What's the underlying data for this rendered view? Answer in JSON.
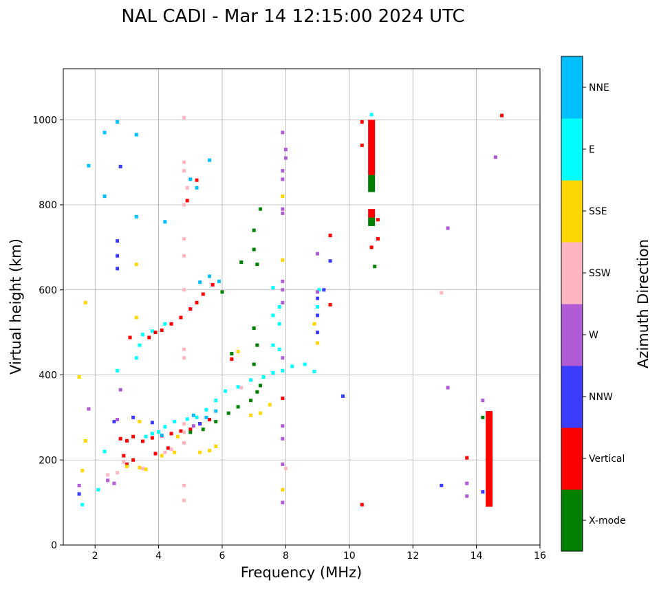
{
  "chart_data": {
    "type": "scatter",
    "title": "NAL CADI - Mar 14 12:15:00 2024 UTC",
    "xlabel": "Frequency (MHz)",
    "ylabel": "Virtual height (km)",
    "xlim": [
      1,
      16
    ],
    "ylim": [
      0,
      1120
    ],
    "xticks": [
      2,
      4,
      6,
      8,
      10,
      12,
      14,
      16
    ],
    "yticks": [
      0,
      200,
      400,
      600,
      800,
      1000
    ],
    "grid": true,
    "colorbar": {
      "label": "Azimuth Direction",
      "categories": [
        {
          "name": "X-mode",
          "color": "#008000"
        },
        {
          "name": "Vertical",
          "color": "#ff0000"
        },
        {
          "name": "NNW",
          "color": "#3c3cff"
        },
        {
          "name": "W",
          "color": "#b05ad6"
        },
        {
          "name": "SSW",
          "color": "#ffb6c1"
        },
        {
          "name": "SSE",
          "color": "#ffd700"
        },
        {
          "name": "E",
          "color": "#00ffff"
        },
        {
          "name": "NNE",
          "color": "#00bfff"
        }
      ]
    },
    "traces": [
      {
        "name": "E",
        "points": [
          [
            3.6,
            255
          ],
          [
            3.8,
            262
          ],
          [
            4.0,
            266
          ],
          [
            4.2,
            278
          ],
          [
            4.5,
            290
          ],
          [
            4.9,
            296
          ],
          [
            5.2,
            300
          ],
          [
            5.5,
            318
          ],
          [
            5.8,
            340
          ],
          [
            6.1,
            362
          ],
          [
            6.5,
            372
          ],
          [
            6.9,
            388
          ],
          [
            7.3,
            395
          ],
          [
            7.6,
            405
          ],
          [
            7.9,
            410
          ],
          [
            8.2,
            420
          ],
          [
            8.6,
            425
          ],
          [
            8.9,
            408
          ],
          [
            9.0,
            560
          ],
          [
            9.05,
            600
          ],
          [
            3.5,
            495
          ],
          [
            3.8,
            503
          ],
          [
            4.2,
            520
          ],
          [
            7.6,
            540
          ],
          [
            7.8,
            520
          ],
          [
            7.6,
            470
          ],
          [
            7.8,
            460
          ],
          [
            7.6,
            605
          ],
          [
            7.8,
            560
          ],
          [
            3.3,
            440
          ],
          [
            3.4,
            470
          ],
          [
            1.6,
            95
          ],
          [
            2.1,
            130
          ],
          [
            2.3,
            220
          ],
          [
            2.7,
            410
          ],
          [
            10.7,
            1012
          ]
        ]
      },
      {
        "name": "Vertical",
        "points": [
          [
            2.8,
            250
          ],
          [
            3.0,
            245
          ],
          [
            3.2,
            255
          ],
          [
            3.5,
            244
          ],
          [
            3.8,
            252
          ],
          [
            4.1,
            257
          ],
          [
            4.4,
            262
          ],
          [
            4.7,
            268
          ],
          [
            5.0,
            272
          ],
          [
            5.3,
            285
          ],
          [
            5.6,
            295
          ],
          [
            3.7,
            488
          ],
          [
            3.9,
            500
          ],
          [
            4.1,
            505
          ],
          [
            4.4,
            520
          ],
          [
            4.7,
            535
          ],
          [
            5.0,
            555
          ],
          [
            5.2,
            570
          ],
          [
            5.4,
            590
          ],
          [
            5.7,
            612
          ],
          [
            2.9,
            210
          ],
          [
            3.0,
            190
          ],
          [
            3.2,
            200
          ],
          [
            3.9,
            215
          ],
          [
            4.3,
            228
          ],
          [
            4.8,
            240
          ],
          [
            6.3,
            437
          ],
          [
            7.9,
            345
          ],
          [
            10.4,
            95
          ],
          [
            10.4,
            995
          ],
          [
            10.4,
            940
          ],
          [
            10.7,
            985
          ],
          [
            10.7,
            920
          ],
          [
            10.7,
            870
          ],
          [
            10.7,
            780
          ],
          [
            10.7,
            700
          ],
          [
            10.9,
            720
          ],
          [
            10.9,
            765
          ],
          [
            14.8,
            1010
          ],
          [
            13.7,
            205
          ],
          [
            9.4,
            728
          ],
          [
            9.4,
            565
          ],
          [
            3.1,
            488
          ],
          [
            4.9,
            810
          ],
          [
            5.2,
            858
          ]
        ]
      },
      {
        "name": "X-mode",
        "points": [
          [
            5.0,
            265
          ],
          [
            5.4,
            272
          ],
          [
            5.8,
            290
          ],
          [
            6.2,
            310
          ],
          [
            6.5,
            325
          ],
          [
            6.9,
            340
          ],
          [
            7.1,
            360
          ],
          [
            7.2,
            375
          ],
          [
            7.0,
            425
          ],
          [
            7.1,
            470
          ],
          [
            7.0,
            510
          ],
          [
            6.6,
            665
          ],
          [
            7.0,
            695
          ],
          [
            7.1,
            660
          ],
          [
            6.0,
            595
          ],
          [
            7.0,
            740
          ],
          [
            7.2,
            790
          ],
          [
            6.3,
            450
          ],
          [
            10.7,
            845
          ],
          [
            10.7,
            760
          ],
          [
            10.8,
            655
          ],
          [
            14.2,
            300
          ],
          [
            14.4,
            255
          ],
          [
            14.4,
            200
          ],
          [
            14.4,
            150
          ]
        ]
      },
      {
        "name": "SSE",
        "points": [
          [
            3.0,
            185
          ],
          [
            3.4,
            182
          ],
          [
            3.6,
            178
          ],
          [
            4.1,
            210
          ],
          [
            4.5,
            218
          ],
          [
            5.3,
            218
          ],
          [
            5.6,
            222
          ],
          [
            5.8,
            232
          ],
          [
            6.9,
            305
          ],
          [
            7.2,
            310
          ],
          [
            7.5,
            330
          ],
          [
            3.4,
            290
          ],
          [
            4.6,
            255
          ],
          [
            1.5,
            395
          ],
          [
            1.7,
            245
          ],
          [
            8.9,
            520
          ],
          [
            9.0,
            475
          ],
          [
            7.9,
            130
          ],
          [
            7.9,
            820
          ],
          [
            7.9,
            670
          ],
          [
            6.5,
            455
          ],
          [
            1.6,
            175
          ],
          [
            1.7,
            570
          ],
          [
            3.3,
            660
          ],
          [
            3.3,
            535
          ]
        ]
      },
      {
        "name": "SSW",
        "points": [
          [
            2.4,
            165
          ],
          [
            2.7,
            170
          ],
          [
            2.9,
            195
          ],
          [
            3.5,
            180
          ],
          [
            4.2,
            218
          ],
          [
            4.4,
            225
          ],
          [
            4.8,
            1005
          ],
          [
            4.8,
            900
          ],
          [
            4.8,
            880
          ],
          [
            4.8,
            800
          ],
          [
            4.8,
            720
          ],
          [
            4.8,
            680
          ],
          [
            4.8,
            600
          ],
          [
            4.8,
            460
          ],
          [
            4.8,
            440
          ],
          [
            4.8,
            285
          ],
          [
            4.8,
            265
          ],
          [
            4.8,
            240
          ],
          [
            4.8,
            140
          ],
          [
            4.8,
            105
          ],
          [
            12.9,
            593
          ],
          [
            8.0,
            180
          ],
          [
            6.6,
            370
          ],
          [
            4.9,
            840
          ]
        ]
      },
      {
        "name": "W",
        "points": [
          [
            7.9,
            970
          ],
          [
            8.0,
            930
          ],
          [
            8.0,
            910
          ],
          [
            7.9,
            880
          ],
          [
            7.9,
            860
          ],
          [
            7.9,
            790
          ],
          [
            7.9,
            780
          ],
          [
            7.9,
            620
          ],
          [
            7.9,
            600
          ],
          [
            7.9,
            570
          ],
          [
            7.9,
            440
          ],
          [
            7.9,
            280
          ],
          [
            7.9,
            250
          ],
          [
            7.9,
            190
          ],
          [
            7.9,
            100
          ],
          [
            9.0,
            685
          ],
          [
            9.0,
            595
          ],
          [
            13.1,
            745
          ],
          [
            13.1,
            370
          ],
          [
            14.2,
            340
          ],
          [
            13.7,
            145
          ],
          [
            13.7,
            115
          ],
          [
            14.6,
            912
          ],
          [
            1.8,
            320
          ],
          [
            1.5,
            140
          ],
          [
            2.4,
            152
          ],
          [
            2.6,
            145
          ],
          [
            2.7,
            295
          ],
          [
            2.8,
            365
          ],
          [
            5.1,
            280
          ]
        ]
      },
      {
        "name": "NNW",
        "points": [
          [
            2.7,
            715
          ],
          [
            2.7,
            650
          ],
          [
            2.7,
            680
          ],
          [
            2.8,
            890
          ],
          [
            9.0,
            580
          ],
          [
            9.0,
            540
          ],
          [
            9.0,
            500
          ],
          [
            9.4,
            668
          ],
          [
            9.2,
            600
          ],
          [
            9.8,
            350
          ],
          [
            12.9,
            140
          ],
          [
            14.2,
            125
          ],
          [
            3.2,
            300
          ],
          [
            3.8,
            288
          ],
          [
            2.6,
            290
          ],
          [
            1.5,
            120
          ],
          [
            5.3,
            285
          ]
        ]
      },
      {
        "name": "NNE",
        "points": [
          [
            2.3,
            970
          ],
          [
            2.7,
            995
          ],
          [
            3.3,
            965
          ],
          [
            4.2,
            760
          ],
          [
            3.3,
            772
          ],
          [
            1.8,
            892
          ],
          [
            2.3,
            820
          ],
          [
            5.0,
            860
          ],
          [
            5.3,
            618
          ],
          [
            5.6,
            632
          ],
          [
            5.9,
            620
          ],
          [
            5.1,
            305
          ],
          [
            5.5,
            300
          ],
          [
            5.8,
            315
          ],
          [
            4.1,
            258
          ],
          [
            5.6,
            905
          ],
          [
            5.2,
            840
          ]
        ]
      }
    ],
    "streaks": [
      {
        "name": "Vertical",
        "x": 14.4,
        "y0": 90,
        "y1": 315
      },
      {
        "name": "Vertical",
        "x": 10.7,
        "y0": 870,
        "y1": 1000
      },
      {
        "name": "X-mode",
        "x": 10.7,
        "y0": 830,
        "y1": 870
      },
      {
        "name": "Vertical",
        "x": 10.7,
        "y0": 770,
        "y1": 790
      },
      {
        "name": "X-mode",
        "x": 10.7,
        "y0": 750,
        "y1": 770
      }
    ]
  }
}
